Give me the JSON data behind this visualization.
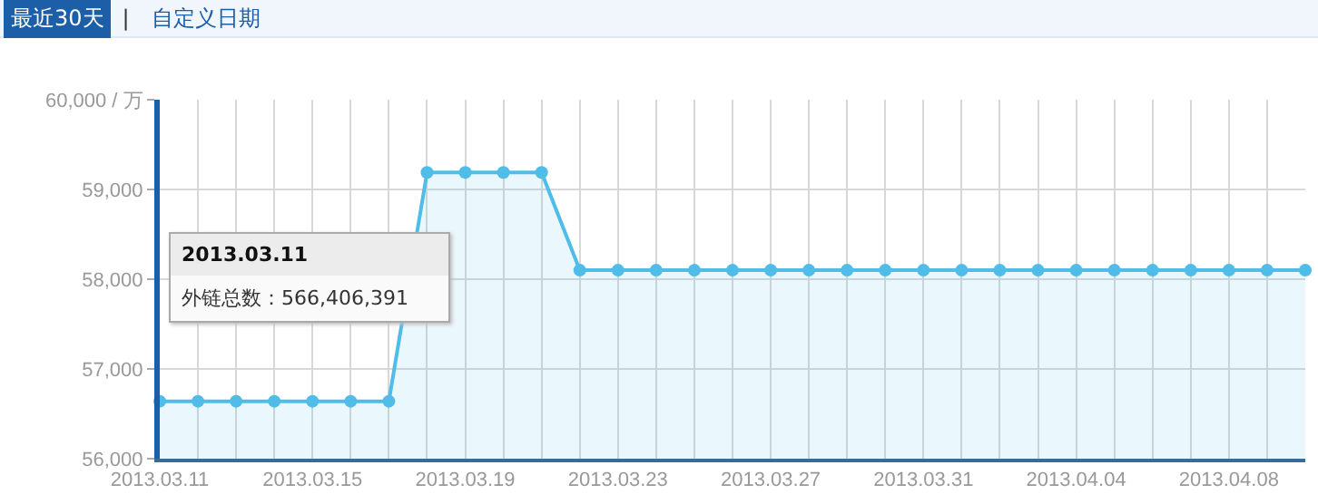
{
  "chart_data": {
    "type": "area",
    "x": [
      "2013-03-11",
      "2013-03-12",
      "2013-03-13",
      "2013-03-14",
      "2013-03-15",
      "2013-03-16",
      "2013-03-17",
      "2013-03-18",
      "2013-03-19",
      "2013-03-20",
      "2013-03-21",
      "2013-03-22",
      "2013-03-23",
      "2013-03-24",
      "2013-03-25",
      "2013-03-26",
      "2013-03-27",
      "2013-03-28",
      "2013-03-29",
      "2013-03-30",
      "2013-03-31",
      "2013-04-01",
      "2013-04-02",
      "2013-04-03",
      "2013-04-04",
      "2013-04-05",
      "2013-04-06",
      "2013-04-07",
      "2013-04-08",
      "2013-04-09",
      "2013-04-10"
    ],
    "series": [
      {
        "color": "#4fbde8",
        "values": [
          56640,
          56640,
          56640,
          56640,
          56640,
          56640,
          56640,
          59190,
          59190,
          59190,
          59190,
          58100,
          58100,
          58100,
          58100,
          58100,
          58100,
          58100,
          58100,
          58100,
          58100,
          58100,
          58100,
          58100,
          58100,
          58100,
          58100,
          58100,
          58100,
          58100,
          58100
        ]
      }
    ],
    "xlim": [
      "2013-03-11",
      "2013-04-10"
    ],
    "xticks": [
      {
        "value": "2013-03-11",
        "label": "2013.03.11"
      },
      {
        "value": "2013-03-15",
        "label": "2013.03.15"
      },
      {
        "value": "2013-03-19",
        "label": "2013.03.19"
      },
      {
        "value": "2013-03-23",
        "label": "2013.03.23"
      },
      {
        "value": "2013-03-27",
        "label": "2013.03.27"
      },
      {
        "value": "2013-03-31",
        "label": "2013.03.31"
      },
      {
        "value": "2013-04-04",
        "label": "2013.04.04"
      },
      {
        "value": "2013-04-08",
        "label": "2013.04.08"
      }
    ],
    "ylim": [
      56000,
      60000
    ],
    "yticks": [
      {
        "value": 56000,
        "label": "56,000"
      },
      {
        "value": 57000,
        "label": "57,000"
      },
      {
        "value": 58000,
        "label": "58,000"
      },
      {
        "value": 59000,
        "label": "59,000"
      },
      {
        "value": 60000,
        "label": "60,000 / 万"
      }
    ],
    "grid": true,
    "marker": "circle",
    "annotations": [
      "最近30天",
      "|",
      "自定义日期",
      "2013.03.11",
      "外链总数：566,406,391"
    ]
  }
}
